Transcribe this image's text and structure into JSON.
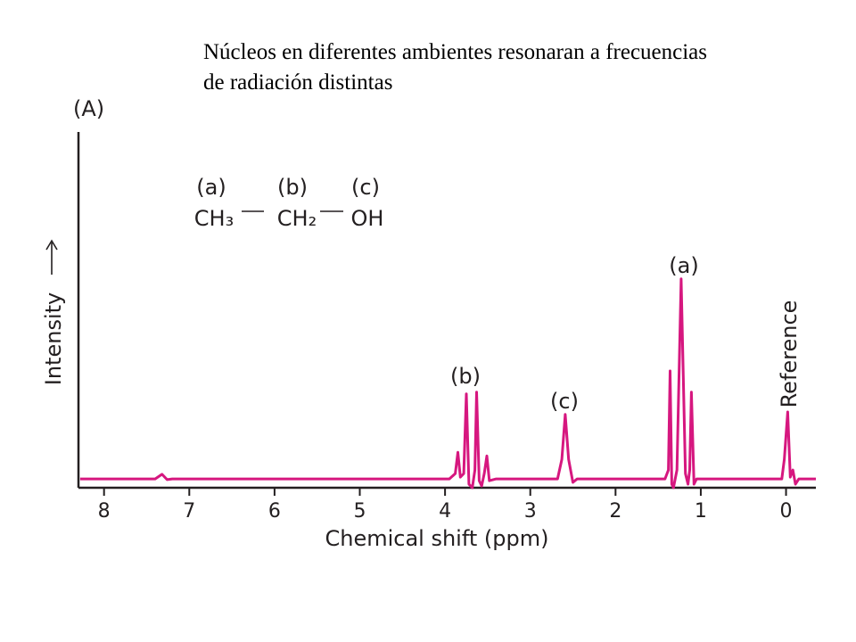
{
  "chart_data": {
    "type": "line",
    "title": "Núcleos en diferentes ambientes resonaran a frecuencias de radiación distintas",
    "panel_label": "(A)",
    "molecule": {
      "labels": [
        "(a)",
        "(b)",
        "(c)"
      ],
      "groups": [
        "CH₃",
        "CH₂",
        "OH"
      ]
    },
    "y_label": "Intensity",
    "x_label": "Chemical shift (ppm)",
    "annotations": [
      "(a)",
      "(b)",
      "(c)",
      "Reference"
    ],
    "color": "#d6177f",
    "x": [
      8.28,
      7.4,
      7.32,
      7.26,
      7.2,
      3.95,
      3.88,
      3.85,
      3.82,
      3.78,
      3.75,
      3.72,
      3.68,
      3.65,
      3.63,
      3.6,
      3.57,
      3.54,
      3.51,
      3.48,
      3.4,
      2.68,
      2.63,
      2.59,
      2.55,
      2.5,
      2.45,
      1.42,
      1.38,
      1.36,
      1.34,
      1.32,
      1.28,
      1.23,
      1.18,
      1.15,
      1.13,
      1.11,
      1.08,
      1.05,
      0.05,
      0.02,
      -0.02,
      -0.05,
      -0.08,
      -0.11,
      -0.15,
      -0.35
    ],
    "values": [
      2.5,
      2.5,
      3.8,
      2.3,
      2.5,
      2.5,
      4,
      10,
      3,
      4,
      26.5,
      1,
      0,
      5,
      27,
      2,
      0.5,
      4,
      9,
      2,
      2.5,
      2.5,
      8,
      20.7,
      8,
      1.5,
      2.5,
      2.5,
      5,
      33,
      1,
      0,
      5,
      59,
      4,
      1,
      5,
      27,
      1,
      2.5,
      2.5,
      8,
      21.4,
      3,
      5,
      1,
      2.5,
      2.5
    ],
    "xlim": [
      8.3,
      -0.35
    ],
    "ylim": [
      0,
      100
    ],
    "xticks": [
      8,
      7,
      6,
      5,
      4,
      3,
      2,
      1,
      0
    ]
  }
}
